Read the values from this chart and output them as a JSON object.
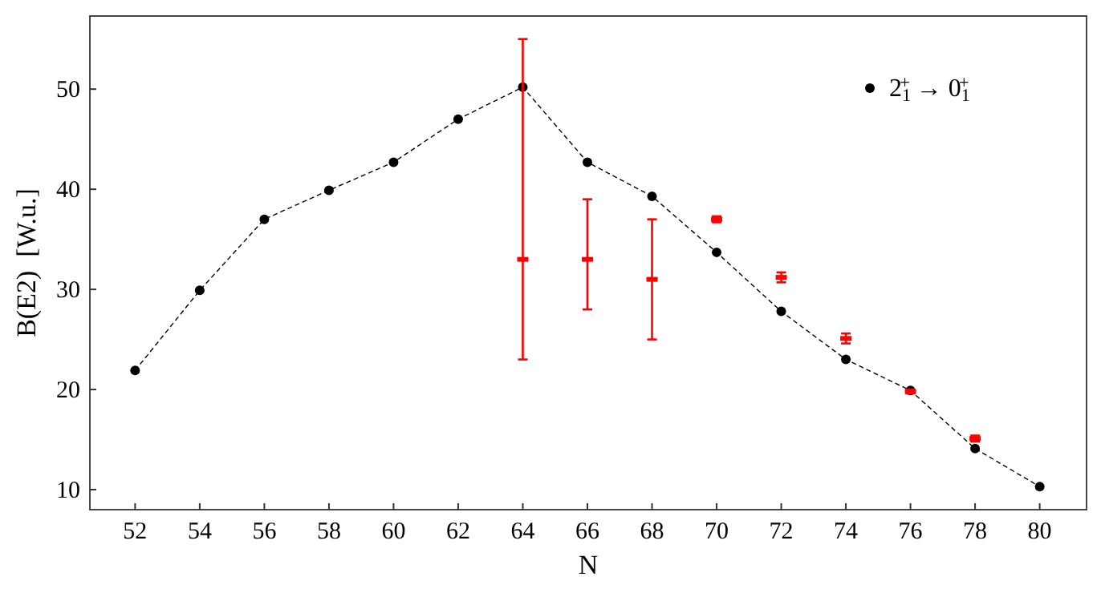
{
  "chart_data": {
    "type": "line",
    "xlabel": "N",
    "ylabel": "B(E2)  [W.u.]",
    "xlim": [
      50.6,
      81.45
    ],
    "xticks": [
      52,
      54,
      56,
      58,
      60,
      62,
      64,
      66,
      68,
      70,
      72,
      74,
      76,
      78,
      80
    ],
    "ylim": [
      8,
      57.3
    ],
    "yticks": [
      10,
      20,
      30,
      40,
      50
    ],
    "grid": false,
    "legend": "top right",
    "series": [
      {
        "name": "2$_{1}$$^{+}$ → 0$_{1}$$^{+}$",
        "color": "#000000",
        "marker": "circle",
        "line_style": "dashed",
        "x": [
          52,
          54,
          56,
          58,
          60,
          62,
          64,
          66,
          68,
          70,
          72,
          74,
          76,
          78,
          80
        ],
        "values": [
          21.9,
          29.9,
          37,
          39.9,
          42.7,
          47,
          50.2,
          42.7,
          39.3,
          33.7,
          27.8,
          23,
          19.9,
          14.1,
          10.3
        ]
      },
      {
        "type": "scatter",
        "color": "#ff0000",
        "x": [
          64,
          66,
          68,
          70,
          72,
          74,
          76,
          78
        ],
        "values": [
          33,
          33,
          31,
          37,
          31.2,
          25.1,
          19.8,
          15.1
        ],
        "errors": [
          [
            23,
            55
          ],
          [
            28,
            39
          ],
          [
            25,
            37
          ],
          [
            36.7,
            37.3
          ],
          [
            30.7,
            31.7
          ],
          [
            24.6,
            25.6
          ],
          [
            19.6,
            20.0
          ],
          [
            14.8,
            15.4
          ]
        ]
      }
    ]
  }
}
